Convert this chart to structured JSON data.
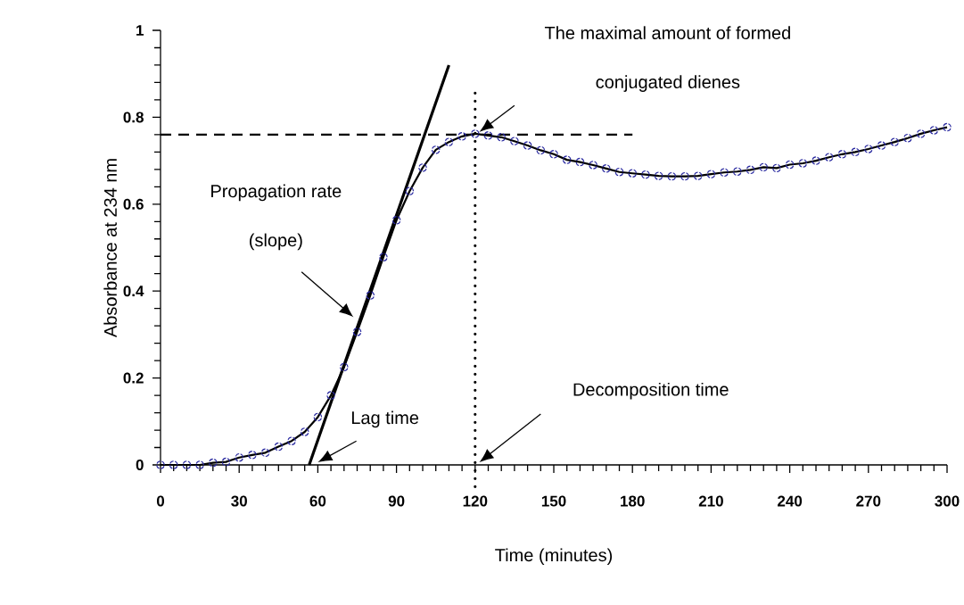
{
  "chart_data": {
    "type": "scatter",
    "xlabel": "Time (minutes)",
    "ylabel": "Absorbance at 234 nm",
    "xlim": [
      0,
      300
    ],
    "ylim": [
      0,
      1
    ],
    "xticks": [
      0,
      30,
      60,
      90,
      120,
      150,
      180,
      210,
      240,
      270,
      300
    ],
    "yticks": [
      0,
      0.2,
      0.4,
      0.6,
      0.8,
      1
    ],
    "x": [
      0,
      5,
      10,
      15,
      20,
      25,
      30,
      35,
      40,
      45,
      50,
      55,
      60,
      65,
      70,
      75,
      80,
      85,
      90,
      95,
      100,
      105,
      110,
      115,
      120,
      125,
      130,
      135,
      140,
      145,
      150,
      155,
      160,
      165,
      170,
      175,
      180,
      185,
      190,
      195,
      200,
      205,
      210,
      215,
      220,
      225,
      230,
      235,
      240,
      245,
      250,
      255,
      260,
      265,
      270,
      275,
      280,
      285,
      290,
      295,
      300
    ],
    "series": [
      {
        "color": "#2a2aa0",
        "marker": "circle",
        "values": [
          0,
          0,
          0,
          0,
          0.005,
          0.007,
          0.017,
          0.023,
          0.028,
          0.042,
          0.055,
          0.076,
          0.11,
          0.16,
          0.225,
          0.306,
          0.39,
          0.478,
          0.563,
          0.63,
          0.684,
          0.725,
          0.743,
          0.756,
          0.762,
          0.758,
          0.754,
          0.745,
          0.735,
          0.724,
          0.715,
          0.702,
          0.697,
          0.69,
          0.682,
          0.674,
          0.671,
          0.668,
          0.665,
          0.664,
          0.664,
          0.665,
          0.669,
          0.673,
          0.675,
          0.679,
          0.685,
          0.683,
          0.691,
          0.694,
          0.7,
          0.708,
          0.715,
          0.72,
          0.727,
          0.735,
          0.743,
          0.752,
          0.762,
          0.77,
          0.777
        ]
      },
      {
        "type": "line",
        "color": "#000000",
        "marker": "none",
        "line_style": "solid",
        "values": [
          0,
          0,
          0,
          0,
          0.005,
          0.007,
          0.017,
          0.023,
          0.028,
          0.042,
          0.055,
          0.076,
          0.11,
          0.16,
          0.225,
          0.306,
          0.39,
          0.478,
          0.563,
          0.63,
          0.684,
          0.725,
          0.743,
          0.756,
          0.762,
          0.758,
          0.754,
          0.745,
          0.735,
          0.724,
          0.715,
          0.702,
          0.697,
          0.69,
          0.682,
          0.674,
          0.671,
          0.668,
          0.665,
          0.664,
          0.664,
          0.665,
          0.669,
          0.673,
          0.675,
          0.679,
          0.685,
          0.683,
          0.691,
          0.694,
          0.7,
          0.708,
          0.715,
          0.72,
          0.727,
          0.735,
          0.743,
          0.752,
          0.762,
          0.77,
          0.777
        ]
      },
      {
        "type": "line",
        "color": "#000000",
        "marker": "none",
        "line_style": "solid",
        "x": [
          56.7,
          110
        ],
        "values": [
          0,
          0.92
        ]
      },
      {
        "type": "line",
        "color": "#000000",
        "marker": "none",
        "line_style": "dashed",
        "x": [
          0,
          180
        ],
        "values": [
          0.76,
          0.76
        ]
      }
    ],
    "ref_lines": [
      {
        "axis": "x",
        "value": 120,
        "line_style": "dotted",
        "color": "#000000"
      }
    ],
    "annotations": [
      "The maximal amount of formed conjugated dienes",
      "Propagation rate (slope)",
      "Lag time",
      "Decomposition time"
    ],
    "grid": false
  }
}
